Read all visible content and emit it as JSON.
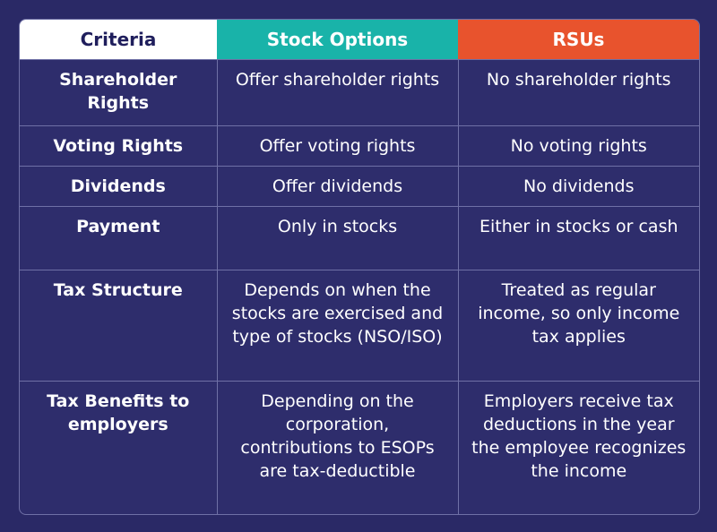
{
  "headers": {
    "criteria": "Criteria",
    "stock_options": "Stock Options",
    "rsus": "RSUs"
  },
  "rows": [
    {
      "criteria": "Shareholder Rights",
      "stock_options": "Offer shareholder rights",
      "rsus": "No shareholder rights"
    },
    {
      "criteria": "Voting Rights",
      "stock_options": "Offer voting rights",
      "rsus": "No voting rights"
    },
    {
      "criteria": "Dividends",
      "stock_options": "Offer dividends",
      "rsus": "No dividends"
    },
    {
      "criteria": "Payment",
      "stock_options": "Only in stocks",
      "rsus": "Either in stocks or cash"
    },
    {
      "criteria": "Tax Structure",
      "stock_options": "Depends on when the stocks are exercised and type of stocks (NSO/ISO)",
      "rsus": "Treated as regular income, so only income tax applies"
    },
    {
      "criteria": "Tax Benefits to employers",
      "stock_options": "Depending on the corporation, contributions to ESOPs are tax-deductible",
      "rsus": "Employers receive tax deductions in the year the employee recognizes the income"
    }
  ],
  "colors": {
    "background": "#2a2966",
    "criteria_header": "#ffffff",
    "stock_header": "#19b3a9",
    "rsu_header": "#e8532d"
  }
}
